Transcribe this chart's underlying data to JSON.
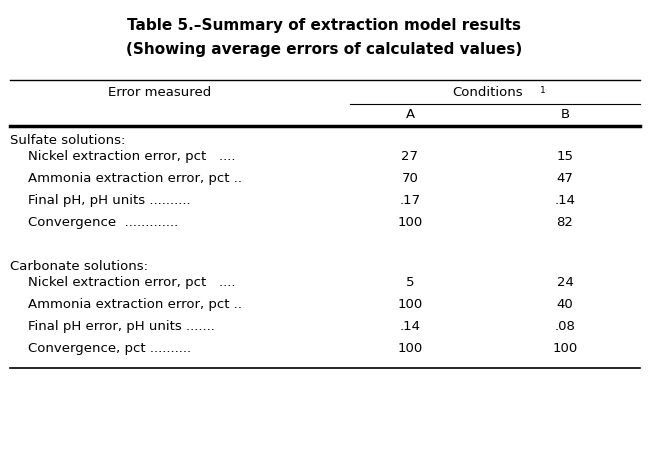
{
  "title1": "Table 5.–Summary of extraction model results",
  "title2": "(Showing average errors of calculated values)",
  "col_header_left": "Error measured",
  "col_header_mid": "Conditions",
  "col_header_mid_sup": "1",
  "col_A": "A",
  "col_B": "B",
  "sulfate_header": "Sulfate solutions:",
  "sulfate_rows": [
    [
      "Nickel extraction error, pct   ....",
      "27",
      "15"
    ],
    [
      "Ammonia extraction error, pct ..",
      "70",
      "47"
    ],
    [
      "Final pH, pH units ..........",
      ".17",
      ".14"
    ],
    [
      "Convergence  .............",
      "100",
      "82"
    ]
  ],
  "carbonate_header": "Carbonate solutions:",
  "carbonate_rows": [
    [
      "Nickel extraction error, pct   ....",
      "5",
      "24"
    ],
    [
      "Ammonia extraction error, pct ..",
      "100",
      "40"
    ],
    [
      "Final pH error, pH units .......",
      ".14",
      ".08"
    ],
    [
      "Convergence, pct ..........",
      "100",
      "100"
    ]
  ],
  "bg_color": "#ffffff",
  "text_color": "#000000"
}
